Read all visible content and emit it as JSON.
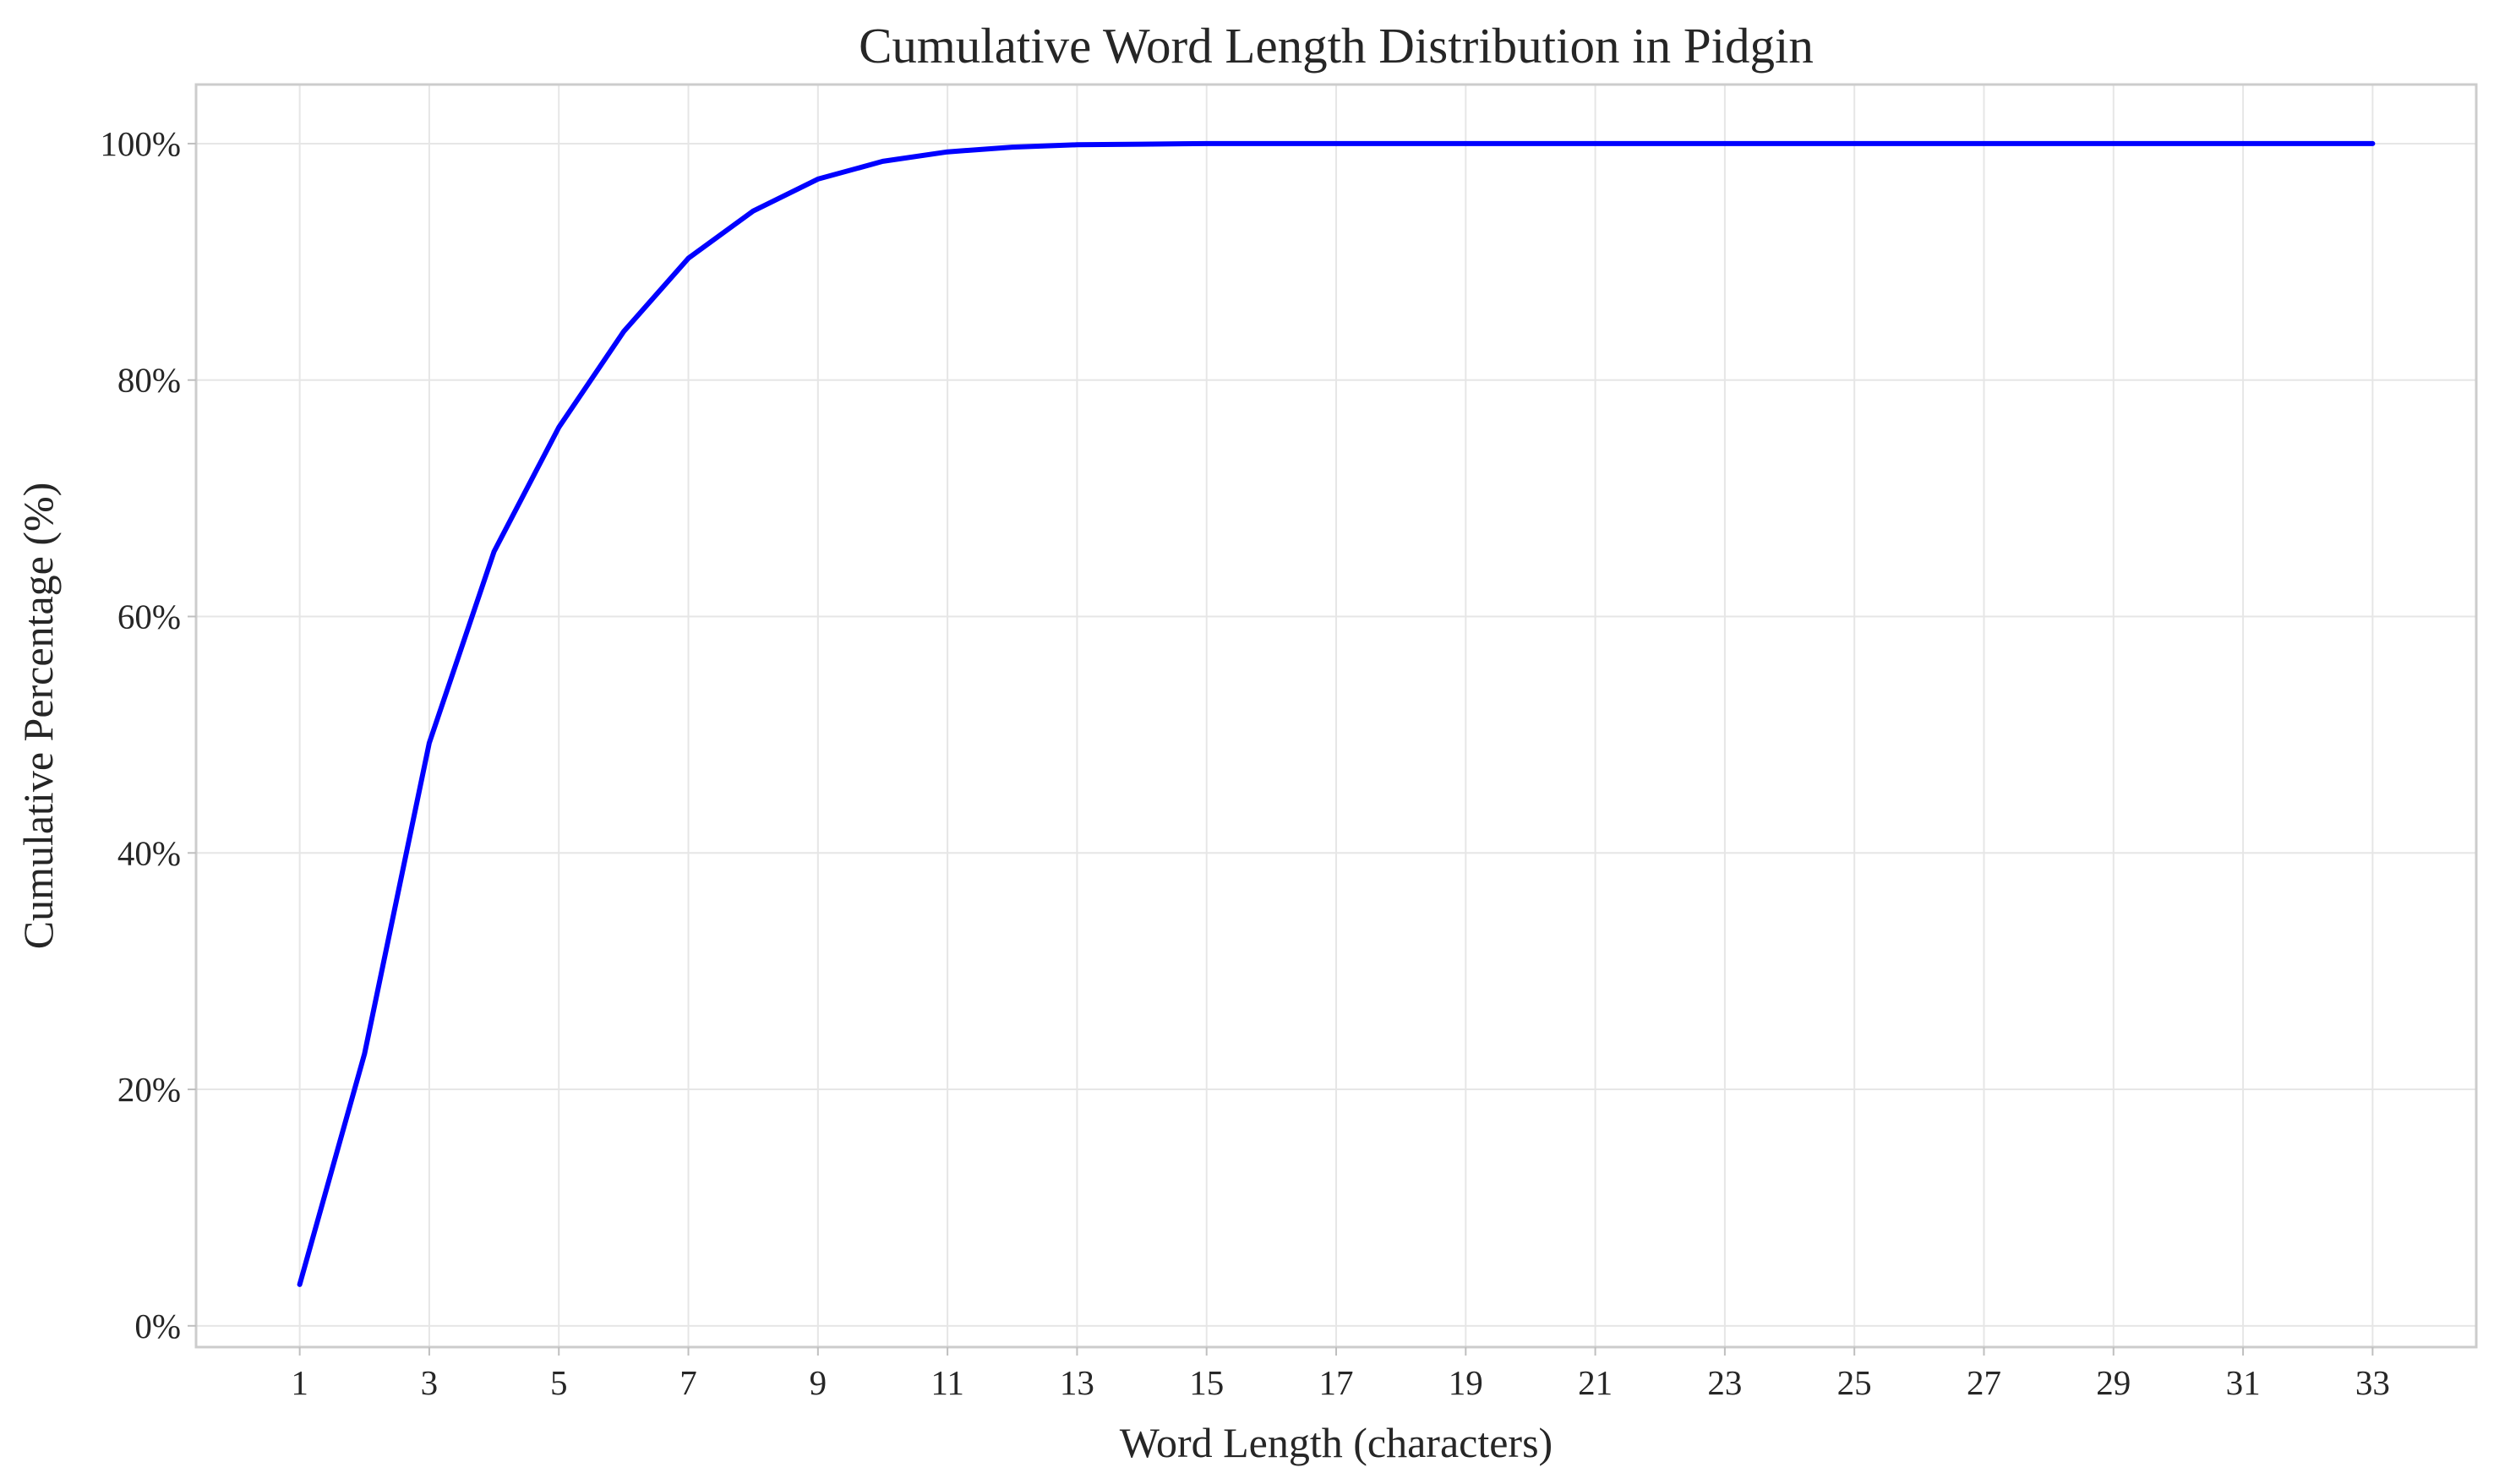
{
  "chart_data": {
    "type": "line",
    "title": "Cumulative Word Length Distribution in Pidgin",
    "xlabel": "Word Length (characters)",
    "ylabel": "Cumulative Percentage (%)",
    "xlim": [
      -0.6,
      34.6
    ],
    "ylim": [
      -1.8,
      105
    ],
    "x_ticks": [
      1,
      3,
      5,
      7,
      9,
      11,
      13,
      15,
      17,
      19,
      21,
      23,
      25,
      27,
      29,
      31,
      33
    ],
    "x_tick_labels": [
      "1",
      "3",
      "5",
      "7",
      "9",
      "11",
      "13",
      "15",
      "17",
      "19",
      "21",
      "23",
      "25",
      "27",
      "29",
      "31",
      "33"
    ],
    "y_ticks": [
      0,
      20,
      40,
      60,
      80,
      100
    ],
    "y_tick_labels": [
      "0%",
      "20%",
      "40%",
      "60%",
      "80%",
      "100%"
    ],
    "grid": true,
    "legend": "none",
    "series": [
      {
        "color": "#0000ff",
        "x": [
          1,
          2,
          3,
          4,
          5,
          6,
          7,
          8,
          9,
          10,
          11,
          12,
          13,
          14,
          15,
          16,
          17,
          18,
          19,
          20,
          21,
          22,
          23,
          24,
          25,
          26,
          27,
          28,
          29,
          30,
          31,
          32,
          33
        ],
        "y": [
          3.5,
          23.0,
          49.3,
          65.5,
          76.0,
          84.1,
          90.3,
          94.3,
          97.0,
          98.5,
          99.3,
          99.7,
          99.9,
          99.95,
          100,
          100,
          100,
          100,
          100,
          100,
          100,
          100,
          100,
          100,
          100,
          100,
          100,
          100,
          100,
          100,
          100,
          100,
          100
        ]
      }
    ]
  }
}
